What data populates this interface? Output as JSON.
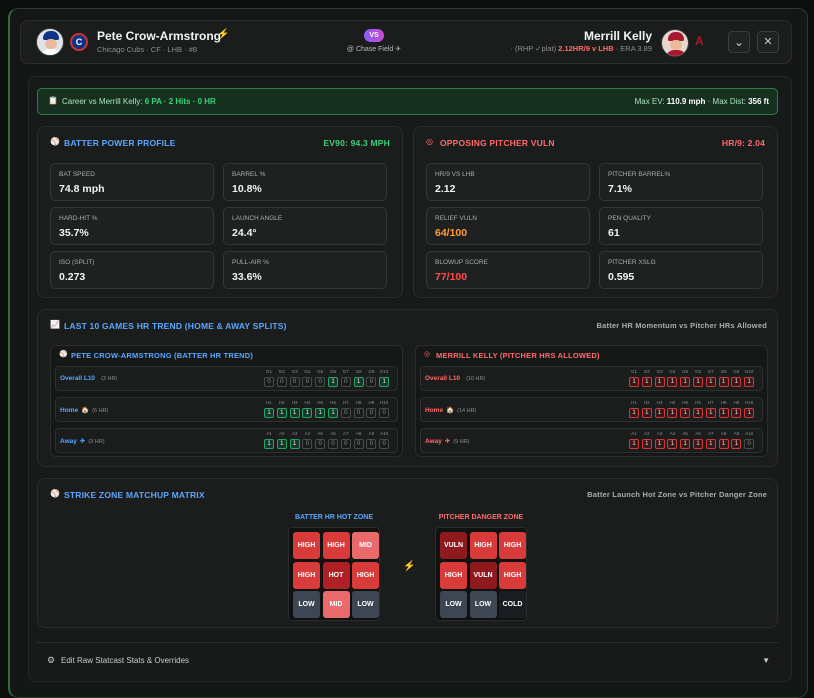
{
  "colors": {
    "accent_green": "#3ad27a",
    "accent_blue": "#5aa7ff",
    "accent_red": "#ff6b6b",
    "orange": "#ff9a3c"
  },
  "header": {
    "batter_name": "Pete Crow-Armstrong",
    "batter_icon": "lightning-icon",
    "batter_sub": "Chicago Cubs · CF · LHB · #8",
    "vs": "VS",
    "field": "@ Chase Field ✈",
    "pitcher_name": "Merrill Kelly",
    "pitcher_sub_pre": "· (RHP ✓plat) ",
    "pitcher_hr": "2.12HR/9 v LHB",
    "pitcher_era": " · ERA 3.89",
    "collapse_icon": "⌄",
    "close_icon": "✕"
  },
  "career": {
    "icon": "📋",
    "text": "Career vs Merrill Kelly: ",
    "value": "6 PA · 2 Hits · 0 HR",
    "right_pre1": "Max EV: ",
    "maxev": "110.9 mph",
    "right_pre2": " · Max Dist: ",
    "maxdist": "356 ft"
  },
  "batter": {
    "title": "BATTER POWER PROFILE",
    "right": "EV90: 94.3 MPH",
    "stats": [
      {
        "label": "BAT SPEED",
        "value": "74.8 mph"
      },
      {
        "label": "BARREL %",
        "value": "10.8%"
      },
      {
        "label": "HARD-HIT %",
        "value": "35.7%"
      },
      {
        "label": "LAUNCH ANGLE",
        "value": "24.4°"
      },
      {
        "label": "ISO (SPLIT)",
        "value": "0.273"
      },
      {
        "label": "PULL-AIR %",
        "value": "33.6%"
      }
    ]
  },
  "pitcher": {
    "title": "OPPOSING PITCHER VULN",
    "right": "HR/9: 2.04",
    "stats": [
      {
        "label": "HR/9 VS LHB",
        "value": "2.12"
      },
      {
        "label": "PITCHER BARREL%",
        "value": "7.1%"
      },
      {
        "label": "RELIEF VULN",
        "value": "64/100"
      },
      {
        "label": "PEN QUALITY",
        "value": "61"
      },
      {
        "label": "BLOWUP SCORE",
        "value": "77/100"
      },
      {
        "label": "PITCHER XSLG",
        "value": "0.595"
      }
    ]
  },
  "trend": {
    "title": "LAST 10 GAMES HR TREND (HOME & AWAY SPLITS)",
    "right": "Batter HR Momentum vs Pitcher HRs Allowed",
    "batter_title": "PETE CROW-ARMSTRONG (BATTER HR TREND)",
    "pitcher_title": "MERRILL KELLY (PITCHER HRS ALLOWED)",
    "batter_rows": [
      {
        "label": "Overall L10",
        "icon": "",
        "count": "(3 HR)",
        "prefix": "G",
        "values": [
          0,
          0,
          0,
          0,
          0,
          1,
          0,
          1,
          0,
          1
        ]
      },
      {
        "label": "Home",
        "icon": "🏠",
        "count": "(6 HR)",
        "prefix": "H",
        "values": [
          1,
          1,
          1,
          1,
          1,
          1,
          0,
          0,
          0,
          0
        ]
      },
      {
        "label": "Away",
        "icon": "✈",
        "count": "(3 HR)",
        "prefix": "A",
        "values": [
          1,
          1,
          1,
          0,
          0,
          0,
          0,
          0,
          0,
          0
        ]
      }
    ],
    "pitcher_rows": [
      {
        "label": "Overall L10",
        "icon": "",
        "count": "(10 HR)",
        "prefix": "G",
        "values": [
          1,
          1,
          1,
          1,
          1,
          1,
          1,
          1,
          1,
          1
        ]
      },
      {
        "label": "Home",
        "icon": "🏠",
        "count": "(14 HR)",
        "prefix": "H",
        "values": [
          1,
          1,
          1,
          1,
          1,
          1,
          1,
          1,
          1,
          1
        ]
      },
      {
        "label": "Away",
        "icon": "✈",
        "count": "(9 HR)",
        "prefix": "A",
        "values": [
          1,
          1,
          1,
          1,
          1,
          1,
          1,
          1,
          1,
          0
        ]
      }
    ]
  },
  "zone": {
    "title": "STRIKE ZONE MATCHUP MATRIX",
    "right": "Batter Launch Hot Zone vs Pitcher Danger Zone",
    "batter_title": "BATTER HR HOT ZONE",
    "pitcher_title": "PITCHER DANGER ZONE",
    "mid_icon": "⚡",
    "batter_cells": [
      "HIGH",
      "HIGH",
      "MID",
      "HIGH",
      "HOT",
      "HIGH",
      "LOW",
      "MID",
      "LOW"
    ],
    "pitcher_cells": [
      "VULN",
      "HIGH",
      "HIGH",
      "HIGH",
      "VULN",
      "HIGH",
      "LOW",
      "LOW",
      "COLD"
    ]
  },
  "footer": {
    "icon": "⚙",
    "label": "Edit Raw Statcast Stats & Overrides",
    "chevron": "▼"
  }
}
